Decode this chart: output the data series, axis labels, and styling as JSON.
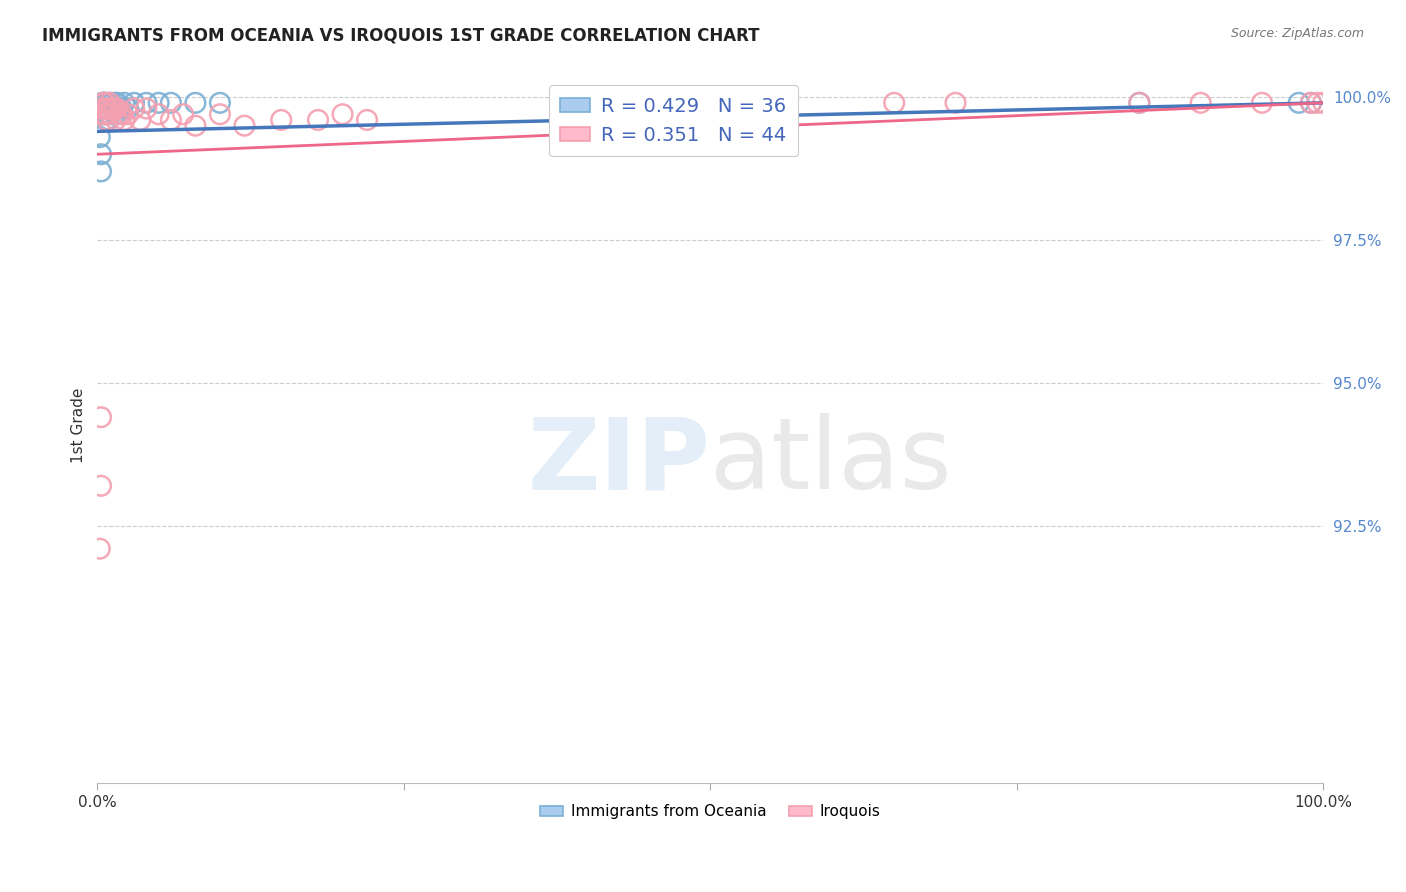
{
  "title": "IMMIGRANTS FROM OCEANIA VS IROQUOIS 1ST GRADE CORRELATION CHART",
  "source": "Source: ZipAtlas.com",
  "ylabel": "1st Grade",
  "xlim": [
    0.0,
    1.0
  ],
  "ylim": [
    0.88,
    1.005
  ],
  "legend_label1": "Immigrants from Oceania",
  "legend_label2": "Iroquois",
  "R1": 0.429,
  "N1": 36,
  "R2": 0.351,
  "N2": 44,
  "color_blue": "#7BAFD4",
  "color_pink": "#F4A0B0",
  "line_blue": "#4477BB",
  "line_pink": "#EE6688",
  "background": "#ffffff",
  "blue_scatter_x": [
    0.002,
    0.003,
    0.003,
    0.004,
    0.004,
    0.005,
    0.005,
    0.006,
    0.006,
    0.007,
    0.007,
    0.008,
    0.008,
    0.009,
    0.009,
    0.01,
    0.01,
    0.012,
    0.013,
    0.015,
    0.015,
    0.016,
    0.018,
    0.02,
    0.022,
    0.025,
    0.03,
    0.04,
    0.05,
    0.06,
    0.08,
    0.1,
    0.55,
    0.85,
    0.98,
    0.99
  ],
  "blue_scatter_y": [
    0.993,
    0.99,
    0.987,
    0.999,
    0.998,
    0.999,
    0.997,
    0.999,
    0.998,
    0.998,
    0.996,
    0.999,
    0.997,
    0.998,
    0.996,
    0.999,
    0.997,
    0.999,
    0.998,
    0.999,
    0.997,
    0.999,
    0.998,
    0.998,
    0.999,
    0.998,
    0.999,
    0.999,
    0.999,
    0.999,
    0.999,
    0.999,
    0.999,
    0.999,
    0.999,
    0.999
  ],
  "pink_scatter_x": [
    0.002,
    0.003,
    0.003,
    0.004,
    0.005,
    0.005,
    0.006,
    0.006,
    0.007,
    0.008,
    0.008,
    0.009,
    0.01,
    0.01,
    0.012,
    0.014,
    0.015,
    0.016,
    0.018,
    0.02,
    0.022,
    0.025,
    0.03,
    0.035,
    0.04,
    0.05,
    0.06,
    0.07,
    0.08,
    0.1,
    0.12,
    0.15,
    0.18,
    0.2,
    0.22,
    0.55,
    0.65,
    0.7,
    0.85,
    0.9,
    0.95,
    0.99,
    0.995,
    1.0
  ],
  "pink_scatter_y": [
    0.921,
    0.932,
    0.944,
    0.998,
    0.999,
    0.997,
    0.999,
    0.997,
    0.998,
    0.998,
    0.996,
    0.998,
    0.999,
    0.997,
    0.998,
    0.998,
    0.996,
    0.998,
    0.997,
    0.997,
    0.996,
    0.997,
    0.998,
    0.996,
    0.998,
    0.997,
    0.996,
    0.997,
    0.995,
    0.997,
    0.995,
    0.996,
    0.996,
    0.997,
    0.996,
    0.999,
    0.999,
    0.999,
    0.999,
    0.999,
    0.999,
    0.999,
    0.999,
    0.999
  ],
  "blue_line_x0": 0.0,
  "blue_line_y0": 0.994,
  "blue_line_x1": 1.0,
  "blue_line_y1": 0.999,
  "pink_line_x0": 0.0,
  "pink_line_y0": 0.99,
  "pink_line_x1": 1.0,
  "pink_line_y1": 0.999
}
